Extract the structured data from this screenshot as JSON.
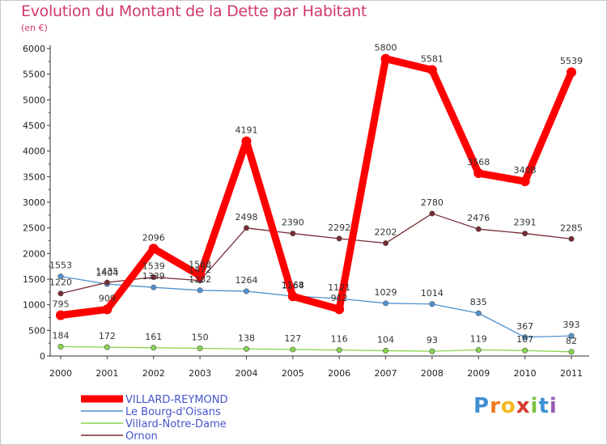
{
  "chart_data": {
    "type": "line",
    "title": "Evolution du Montant de la Dette par Habitant",
    "subtitle": "(en €)",
    "x": [
      "2000",
      "2001",
      "2002",
      "2003",
      "2004",
      "2005",
      "2006",
      "2007",
      "2008",
      "2009",
      "2010",
      "2011"
    ],
    "y_ticks": [
      "0",
      "500",
      "1000",
      "1500",
      "2000",
      "2500",
      "3000",
      "3500",
      "4000",
      "4500",
      "5000",
      "5500",
      "6000"
    ],
    "ylim": [
      0,
      6000
    ],
    "grid": false,
    "legend_position": "bottom-left",
    "series": [
      {
        "name": "VILLARD-REYMOND",
        "color": "#ff0000",
        "values": [
          795,
          909,
          2096,
          1568,
          4191,
          1164,
          912,
          5800,
          5581,
          3568,
          3408,
          5539
        ],
        "labels": [
          "795",
          "909",
          "2096",
          "1568",
          "4191",
          "1164",
          "912",
          "5800",
          "5581",
          "3568",
          "3408",
          "5539"
        ]
      },
      {
        "name": "Le Bourg-d'Oisans",
        "color": "#4f92cf",
        "values": [
          1553,
          1404,
          1339,
          1282,
          1264,
          1168,
          1121,
          1029,
          1014,
          835,
          367,
          393
        ],
        "labels": [
          "1553",
          "1404",
          "1339",
          "1282",
          "1264",
          "1168",
          "1121",
          "1029",
          "1014",
          "835",
          "367",
          "393"
        ]
      },
      {
        "name": "Villard-Notre-Dame",
        "color": "#88d44c",
        "values": [
          184,
          172,
          161,
          150,
          138,
          127,
          116,
          104,
          93,
          119,
          107,
          82
        ],
        "labels": [
          "184",
          "172",
          "161",
          "150",
          "138",
          "127",
          "116",
          "104",
          "93",
          "119",
          "107",
          "82"
        ]
      },
      {
        "name": "Ornon",
        "color": "#7a2a33",
        "values": [
          1220,
          1435,
          1539,
          1472,
          2498,
          2390,
          2292,
          2202,
          2780,
          2476,
          2391,
          2285
        ],
        "labels": [
          "1220",
          "1435",
          "1539",
          "1472",
          "2498",
          "2390",
          "2292",
          "2202",
          "2780",
          "2476",
          "2391",
          "2285"
        ]
      }
    ]
  },
  "logo": {
    "letters": [
      "P",
      "r",
      "o",
      "x",
      "i",
      "t",
      "i"
    ],
    "colors": [
      "#3f8fd2",
      "#f07a1e",
      "#f5b81c",
      "#d43b2c",
      "#7cc243",
      "#3f8fd2",
      "#9b5bb5"
    ]
  }
}
